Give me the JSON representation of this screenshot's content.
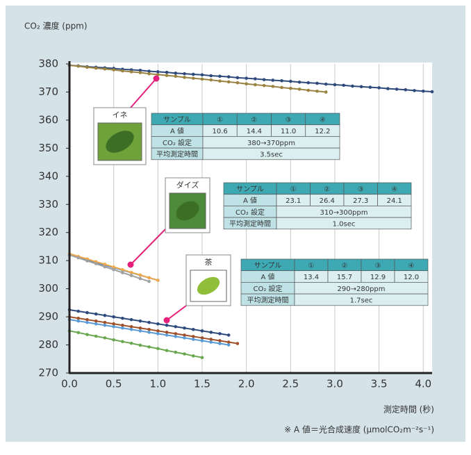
{
  "chart_data": {
    "type": "line",
    "title": "CO₂ 濃度 (ppm)",
    "x_label": "測定時間 (秒)",
    "footnote": "※ A 値＝光合成速度 (μmolCO₂m⁻²s⁻¹)",
    "xlim": [
      0,
      4.1
    ],
    "ylim": [
      270,
      380
    ],
    "xticks": [
      {
        "value": 0,
        "label": "0.0"
      },
      {
        "value": 0.5,
        "label": "0.5"
      },
      {
        "value": 1,
        "label": "1.0"
      },
      {
        "value": 1.5,
        "label": "1.5"
      },
      {
        "value": 2,
        "label": "2.0"
      },
      {
        "value": 2.5,
        "label": "2.5"
      },
      {
        "value": 3,
        "label": "3.0"
      },
      {
        "value": 3.5,
        "label": "3.5"
      },
      {
        "value": 4,
        "label": "4.0"
      }
    ],
    "yticks": [
      270,
      280,
      290,
      300,
      310,
      320,
      330,
      340,
      350,
      360,
      370,
      380
    ],
    "grid": true,
    "series": [
      {
        "color": "#2e4a7d",
        "x": [
          0,
          0.1,
          0.2,
          0.3,
          0.4,
          0.5,
          0.6,
          0.7,
          0.8,
          0.9,
          1,
          1.1,
          1.2,
          1.3,
          1.4,
          1.5,
          1.6,
          1.7,
          1.8,
          1.9,
          2,
          2.1,
          2.2,
          2.3,
          2.4,
          2.5,
          2.6,
          2.7,
          2.8,
          2.9,
          3,
          3.1,
          3.2,
          3.3,
          3.4,
          3.5,
          3.6,
          3.7,
          3.8,
          3.9,
          4,
          4.1
        ],
        "values": [
          379.5,
          379.3,
          379.0,
          378.8,
          378.6,
          378.4,
          378.1,
          377.9,
          377.7,
          377.4,
          377.2,
          377.0,
          376.7,
          376.5,
          376.3,
          376.1,
          375.8,
          375.6,
          375.4,
          375.1,
          374.9,
          374.7,
          374.4,
          374.2,
          374.0,
          373.8,
          373.5,
          373.3,
          373.1,
          372.8,
          372.6,
          372.4,
          372.1,
          371.9,
          371.7,
          371.5,
          371.2,
          371.0,
          370.8,
          370.5,
          370.3,
          370.1
        ]
      },
      {
        "color": "#9a8240",
        "x": [
          0,
          0.1,
          0.2,
          0.3,
          0.4,
          0.5,
          0.6,
          0.7,
          0.8,
          0.9,
          1,
          1.1,
          1.2,
          1.3,
          1.4,
          1.5,
          1.6,
          1.7,
          1.8,
          1.9,
          2,
          2.1,
          2.2,
          2.3,
          2.4,
          2.5,
          2.6,
          2.7,
          2.8,
          2.9
        ],
        "values": [
          379.5,
          379.2,
          378.8,
          378.5,
          378.2,
          377.9,
          377.5,
          377.2,
          376.9,
          376.5,
          376.2,
          375.9,
          375.6,
          375.2,
          374.9,
          374.6,
          374.3,
          373.9,
          373.6,
          373.3,
          372.9,
          372.6,
          372.3,
          372.0,
          371.6,
          371.3,
          371.0,
          370.6,
          370.3,
          370.0
        ]
      },
      {
        "color": "#4a86c5",
        "x": [
          0,
          0.1,
          0.2,
          0.3,
          0.4,
          0.5,
          0.6,
          0.7,
          0.8,
          0.9,
          1
        ],
        "values": [
          312,
          311.1,
          310.2,
          309.3,
          308.4,
          307.5,
          306.6,
          305.7,
          304.8,
          303.9,
          303.0
        ]
      },
      {
        "color": "#f0a94a",
        "x": [
          0,
          0.1,
          0.2,
          0.3,
          0.4,
          0.5,
          0.6,
          0.7,
          0.8,
          0.9,
          1
        ],
        "values": [
          312.5,
          311.5,
          310.6,
          309.6,
          308.7,
          307.7,
          306.8,
          305.8,
          304.9,
          303.9,
          303.0
        ]
      },
      {
        "color": "#a0a0a0",
        "x": [
          0,
          0.1,
          0.2,
          0.3,
          0.4,
          0.5,
          0.6,
          0.7,
          0.8,
          0.9
        ],
        "values": [
          312,
          311,
          309.9,
          308.9,
          307.8,
          306.8,
          305.7,
          304.7,
          303.6,
          302.6
        ]
      },
      {
        "color": "#2e4a7d",
        "x": [
          0,
          0.1,
          0.2,
          0.3,
          0.4,
          0.5,
          0.6,
          0.7,
          0.8,
          0.9,
          1,
          1.1,
          1.2,
          1.3,
          1.4,
          1.5,
          1.6,
          1.7,
          1.8
        ],
        "values": [
          292.5,
          292.0,
          291.5,
          291.0,
          290.5,
          290.0,
          289.5,
          289.0,
          288.5,
          288.0,
          287.5,
          287.0,
          286.5,
          286.0,
          285.5,
          285.0,
          284.5,
          284.0,
          283.5
        ]
      },
      {
        "color": "#a0502a",
        "x": [
          0,
          0.1,
          0.2,
          0.3,
          0.4,
          0.5,
          0.6,
          0.7,
          0.8,
          0.9,
          1,
          1.1,
          1.2,
          1.3,
          1.4,
          1.5,
          1.6,
          1.7,
          1.8,
          1.9
        ],
        "values": [
          290.0,
          289.5,
          289.0,
          288.5,
          288.0,
          287.5,
          287.0,
          286.5,
          286.0,
          285.5,
          285.0,
          284.5,
          284.0,
          283.5,
          283.0,
          282.5,
          282.0,
          281.5,
          281.0,
          280.5
        ]
      },
      {
        "color": "#5b9bd5",
        "x": [
          0,
          0.1,
          0.2,
          0.3,
          0.4,
          0.5,
          0.6,
          0.7,
          0.8,
          0.9,
          1,
          1.1,
          1.2,
          1.3,
          1.4,
          1.5,
          1.6,
          1.7,
          1.8
        ],
        "values": [
          289.0,
          288.5,
          288.0,
          287.5,
          287.0,
          286.5,
          286.0,
          285.5,
          285.0,
          284.5,
          284.0,
          283.5,
          283.0,
          282.5,
          282.0,
          281.5,
          281.0,
          280.5,
          280.0
        ]
      },
      {
        "color": "#6aa84f",
        "x": [
          0,
          0.1,
          0.2,
          0.3,
          0.4,
          0.5,
          0.6,
          0.7,
          0.8,
          0.9,
          1,
          1.1,
          1.2,
          1.3,
          1.4,
          1.5
        ],
        "values": [
          285.0,
          284.4,
          283.7,
          283.1,
          282.5,
          281.8,
          281.2,
          280.6,
          279.9,
          279.3,
          278.7,
          278.0,
          277.4,
          276.8,
          276.1,
          275.5
        ]
      }
    ],
    "insets": [
      {
        "label": "イネ",
        "table": {
          "header": [
            "サンプル",
            "①",
            "②",
            "③",
            "④"
          ],
          "rows": [
            [
              "A 値",
              "10.6",
              "14.4",
              "11.0",
              "12.2"
            ],
            [
              "CO₂ 設定",
              "380→370ppm"
            ],
            [
              "平均測定時間",
              "3.5sec"
            ]
          ]
        }
      },
      {
        "label": "ダイズ",
        "table": {
          "header": [
            "サンプル",
            "①",
            "②",
            "③",
            "④"
          ],
          "rows": [
            [
              "A 値",
              "23.1",
              "26.4",
              "27.3",
              "24.1"
            ],
            [
              "CO₂ 設定",
              "310→300ppm"
            ],
            [
              "平均測定時間",
              "1.0sec"
            ]
          ]
        }
      },
      {
        "label": "茶",
        "table": {
          "header": [
            "サンプル",
            "①",
            "②",
            "③",
            "④"
          ],
          "rows": [
            [
              "A 値",
              "13.4",
              "15.7",
              "12.9",
              "12.0"
            ],
            [
              "CO₂ 設定",
              "290→280ppm"
            ],
            [
              "平均測定時間",
              "1.7sec"
            ]
          ]
        }
      }
    ]
  }
}
